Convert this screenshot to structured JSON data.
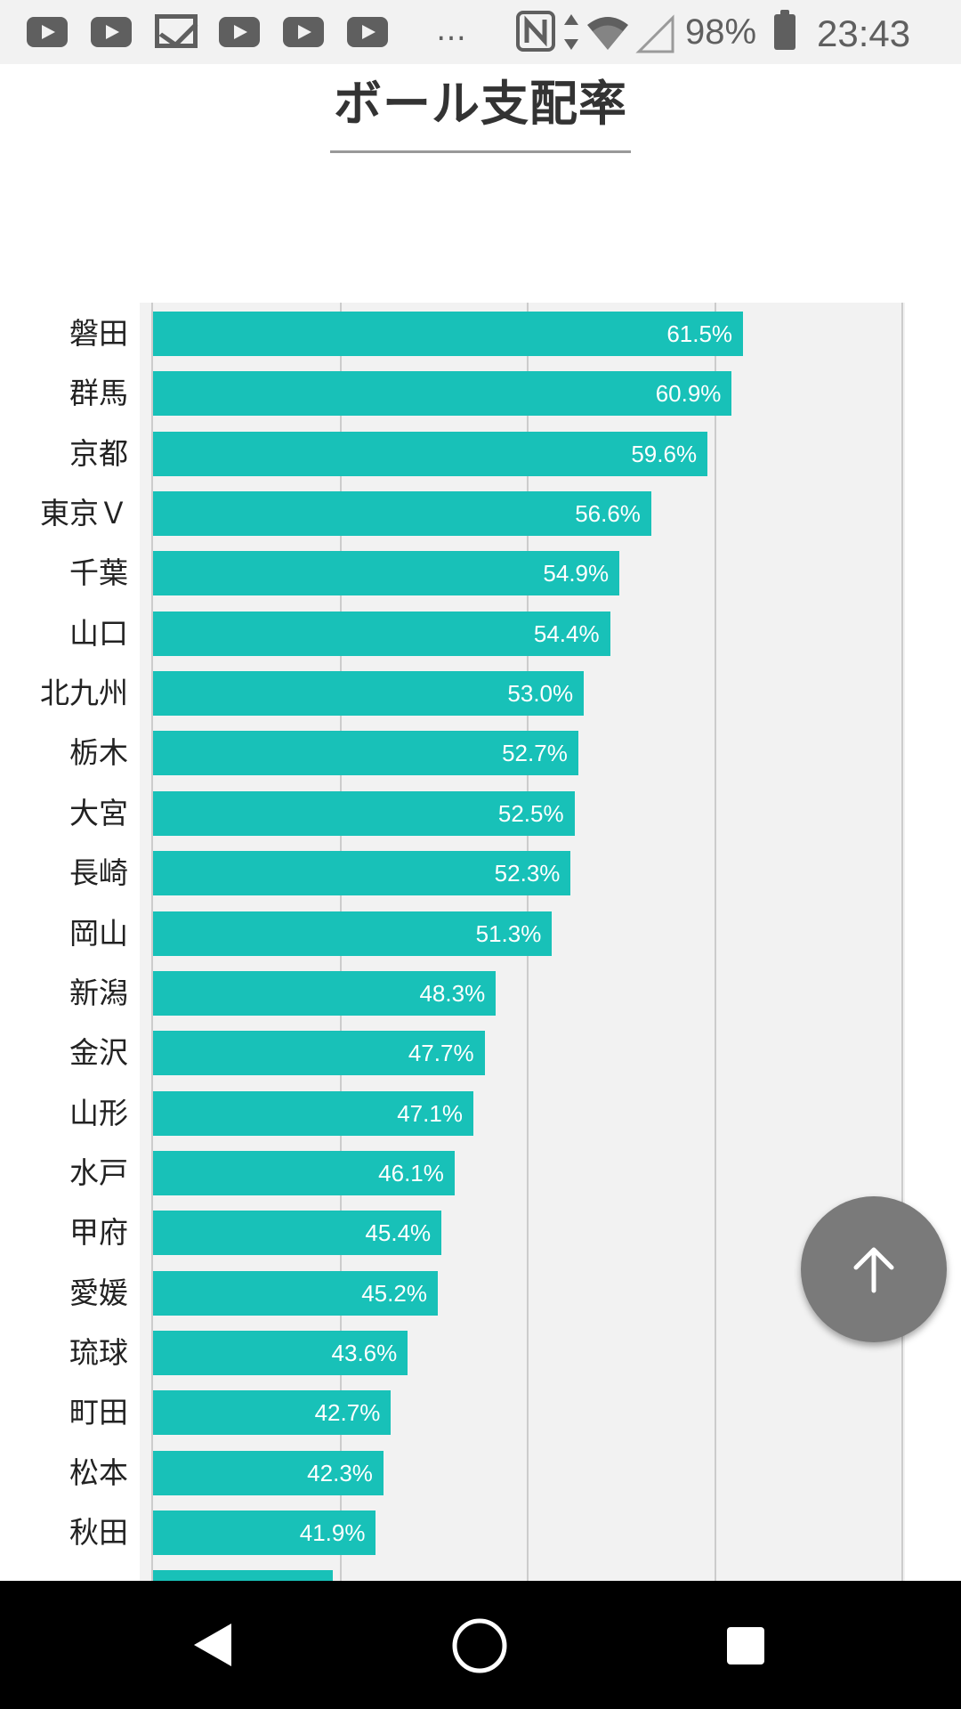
{
  "status_bar": {
    "notification_icons": [
      "youtube-icon",
      "youtube-icon",
      "gmail-icon",
      "youtube-icon",
      "youtube-icon",
      "youtube-icon"
    ],
    "overflow": "…",
    "battery_percent": "98%",
    "time": "23:43"
  },
  "page": {
    "title": "ボール支配率"
  },
  "chart_data": {
    "type": "bar",
    "orientation": "horizontal",
    "title": "",
    "categories": [
      "磐田",
      "群馬",
      "京都",
      "東京Ｖ",
      "千葉",
      "山口",
      "北九州",
      "栃木",
      "大宮",
      "長崎",
      "岡山",
      "新潟",
      "金沢",
      "山形",
      "水戸",
      "甲府",
      "愛媛",
      "琉球",
      "町田",
      "松本",
      "秋田"
    ],
    "values": [
      61.5,
      60.9,
      59.6,
      56.6,
      54.9,
      54.4,
      53.0,
      52.7,
      52.5,
      52.3,
      51.3,
      48.3,
      47.7,
      47.1,
      46.1,
      45.4,
      45.2,
      43.6,
      42.7,
      42.3,
      41.9
    ],
    "value_labels": [
      "61.5%",
      "60.9%",
      "59.6%",
      "56.6%",
      "54.9%",
      "54.4%",
      "53.0%",
      "52.7%",
      "52.5%",
      "52.3%",
      "51.3%",
      "48.3%",
      "47.7%",
      "47.1%",
      "46.1%",
      "45.4%",
      "45.2%",
      "43.6%",
      "42.7%",
      "42.3%",
      "41.9%"
    ],
    "partial_next_value": 39.6,
    "xlim": [
      30,
      70
    ],
    "grid": true,
    "bar_color": "#18c1b8",
    "legend": "none"
  },
  "colors": {
    "accent": "#18c1b8",
    "fab": "#7a7a7a"
  },
  "fab": {
    "icon": "arrow-up-icon"
  },
  "nav_bar": {
    "icons": [
      "back-icon",
      "home-icon",
      "recents-icon"
    ]
  }
}
